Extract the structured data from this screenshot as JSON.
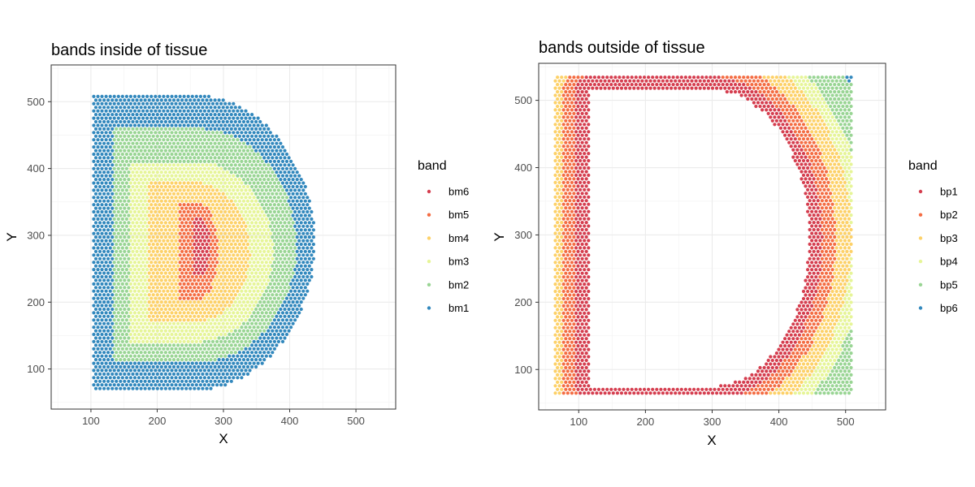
{
  "chart_data": [
    {
      "id": "inside",
      "type": "scatter",
      "title": "bands inside of tissue",
      "xlabel": "X",
      "ylabel": "Y",
      "xlim": [
        40,
        560
      ],
      "ylim": [
        40,
        555
      ],
      "xticks": [
        100,
        200,
        300,
        400,
        500
      ],
      "yticks": [
        100,
        200,
        300,
        400,
        500
      ],
      "grid": true,
      "legend": {
        "title": "band",
        "position": "right",
        "entries": [
          {
            "label": "bm6",
            "color": "#d53e4f"
          },
          {
            "label": "bm5",
            "color": "#f46d43"
          },
          {
            "label": "bm4",
            "color": "#fdd168"
          },
          {
            "label": "bm3",
            "color": "#e6f598"
          },
          {
            "label": "bm2",
            "color": "#99d594"
          },
          {
            "label": "bm1",
            "color": "#3288bd"
          }
        ]
      },
      "series": [
        {
          "name": "bm1",
          "color": "#3288bd",
          "shape": "D-ring",
          "x_range": [
            102,
            438
          ],
          "y_range": [
            68,
            510
          ]
        },
        {
          "name": "bm2",
          "color": "#99d594",
          "shape": "D-ring",
          "x_range": [
            135,
            410
          ],
          "y_range": [
            110,
            460
          ]
        },
        {
          "name": "bm3",
          "color": "#e6f598",
          "shape": "D-ring",
          "x_range": [
            160,
            375
          ],
          "y_range": [
            140,
            410
          ]
        },
        {
          "name": "bm4",
          "color": "#fdd168",
          "shape": "D-ring",
          "x_range": [
            185,
            340
          ],
          "y_range": [
            170,
            380
          ]
        },
        {
          "name": "bm5",
          "color": "#f46d43",
          "shape": "D-ring",
          "x_range": [
            232,
            292
          ],
          "y_range": [
            203,
            350
          ]
        },
        {
          "name": "bm6",
          "color": "#d53e4f",
          "shape": "D-core",
          "x_range": [
            255,
            280
          ],
          "y_range": [
            240,
            325
          ]
        }
      ]
    },
    {
      "id": "outside",
      "type": "scatter",
      "title": "bands outside of tissue",
      "xlabel": "X",
      "ylabel": "Y",
      "xlim": [
        40,
        560
      ],
      "ylim": [
        40,
        555
      ],
      "xticks": [
        100,
        200,
        300,
        400,
        500
      ],
      "yticks": [
        100,
        200,
        300,
        400,
        500
      ],
      "grid": true,
      "legend": {
        "title": "band",
        "position": "right",
        "entries": [
          {
            "label": "bp1",
            "color": "#d53e4f"
          },
          {
            "label": "bp2",
            "color": "#f46d43"
          },
          {
            "label": "bp3",
            "color": "#fdd168"
          },
          {
            "label": "bp4",
            "color": "#e6f598"
          },
          {
            "label": "bp5",
            "color": "#99d594"
          },
          {
            "label": "bp6",
            "color": "#3288bd"
          }
        ]
      },
      "series": [
        {
          "name": "bp1",
          "color": "#d53e4f",
          "shape": "frame-band",
          "x_range": [
            65,
            510
          ],
          "y_range": [
            65,
            535
          ]
        },
        {
          "name": "bp2",
          "color": "#f46d43",
          "shape": "frame-band",
          "x_range": [
            65,
            510
          ],
          "y_range": [
            65,
            535
          ]
        },
        {
          "name": "bp3",
          "color": "#fdd168",
          "shape": "frame-band",
          "x_range": [
            65,
            510
          ],
          "y_range": [
            65,
            535
          ]
        },
        {
          "name": "bp4",
          "color": "#e6f598",
          "shape": "frame-band",
          "x_range": [
            65,
            510
          ],
          "y_range": [
            65,
            535
          ]
        },
        {
          "name": "bp5",
          "color": "#99d594",
          "shape": "frame-band",
          "x_range": [
            65,
            510
          ],
          "y_range": [
            65,
            535
          ]
        },
        {
          "name": "bp6",
          "color": "#3288bd",
          "shape": "frame-corner",
          "x_range": [
            505,
            510
          ],
          "y_range": [
            530,
            535
          ]
        }
      ]
    }
  ]
}
